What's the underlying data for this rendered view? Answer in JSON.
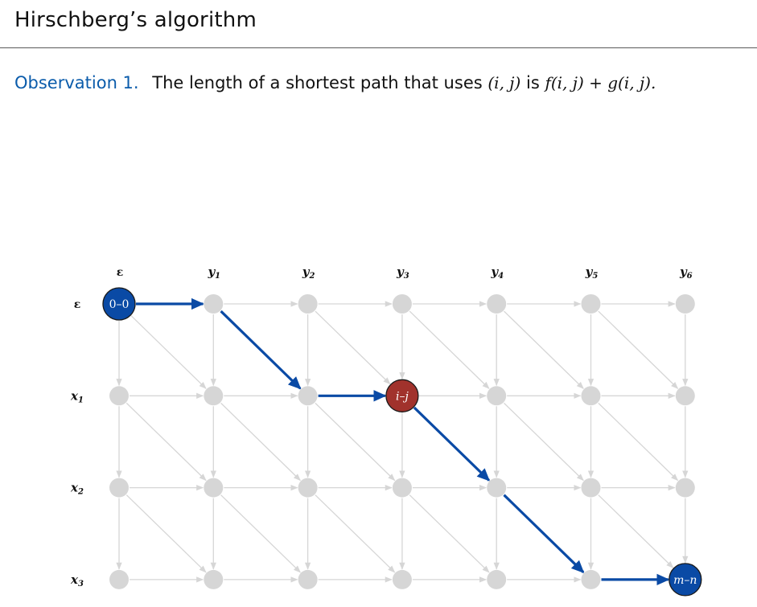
{
  "page": {
    "title": "Hirschberg’s algorithm"
  },
  "observation": {
    "label": "Observation 1.",
    "text_before": "The length of a shortest path that uses",
    "pair": "(i, j)",
    "text_mid": "is",
    "formula": "f(i, j) + g(i, j).",
    "label_color": "#0b5cab"
  },
  "diagram": {
    "column_labels": [
      {
        "base": "ε",
        "sub": ""
      },
      {
        "base": "y",
        "sub": "1"
      },
      {
        "base": "y",
        "sub": "2"
      },
      {
        "base": "y",
        "sub": "3"
      },
      {
        "base": "y",
        "sub": "4"
      },
      {
        "base": "y",
        "sub": "5"
      },
      {
        "base": "y",
        "sub": "6"
      }
    ],
    "row_labels": [
      {
        "base": "ε",
        "sub": ""
      },
      {
        "base": "x",
        "sub": "1"
      },
      {
        "base": "x",
        "sub": "2"
      },
      {
        "base": "x",
        "sub": "3"
      }
    ],
    "rows": 4,
    "cols": 7,
    "special_nodes": [
      {
        "row": 0,
        "col": 0,
        "label": "0–0",
        "fill": "#0a4aa5",
        "italic": false,
        "name": "start-node"
      },
      {
        "row": 1,
        "col": 3,
        "label": "i–j",
        "fill": "#a1322c",
        "italic": true,
        "name": "split-node"
      },
      {
        "row": 3,
        "col": 6,
        "label": "m–n",
        "fill": "#0a4aa5",
        "italic": true,
        "name": "end-node"
      }
    ],
    "path": [
      [
        0,
        0
      ],
      [
        0,
        1
      ],
      [
        1,
        2
      ],
      [
        1,
        3
      ],
      [
        2,
        4
      ],
      [
        3,
        5
      ],
      [
        3,
        6
      ]
    ],
    "colors": {
      "node": "#d6d6d6",
      "edge": "#d6d6d6",
      "path": "#0a4aa5"
    }
  }
}
